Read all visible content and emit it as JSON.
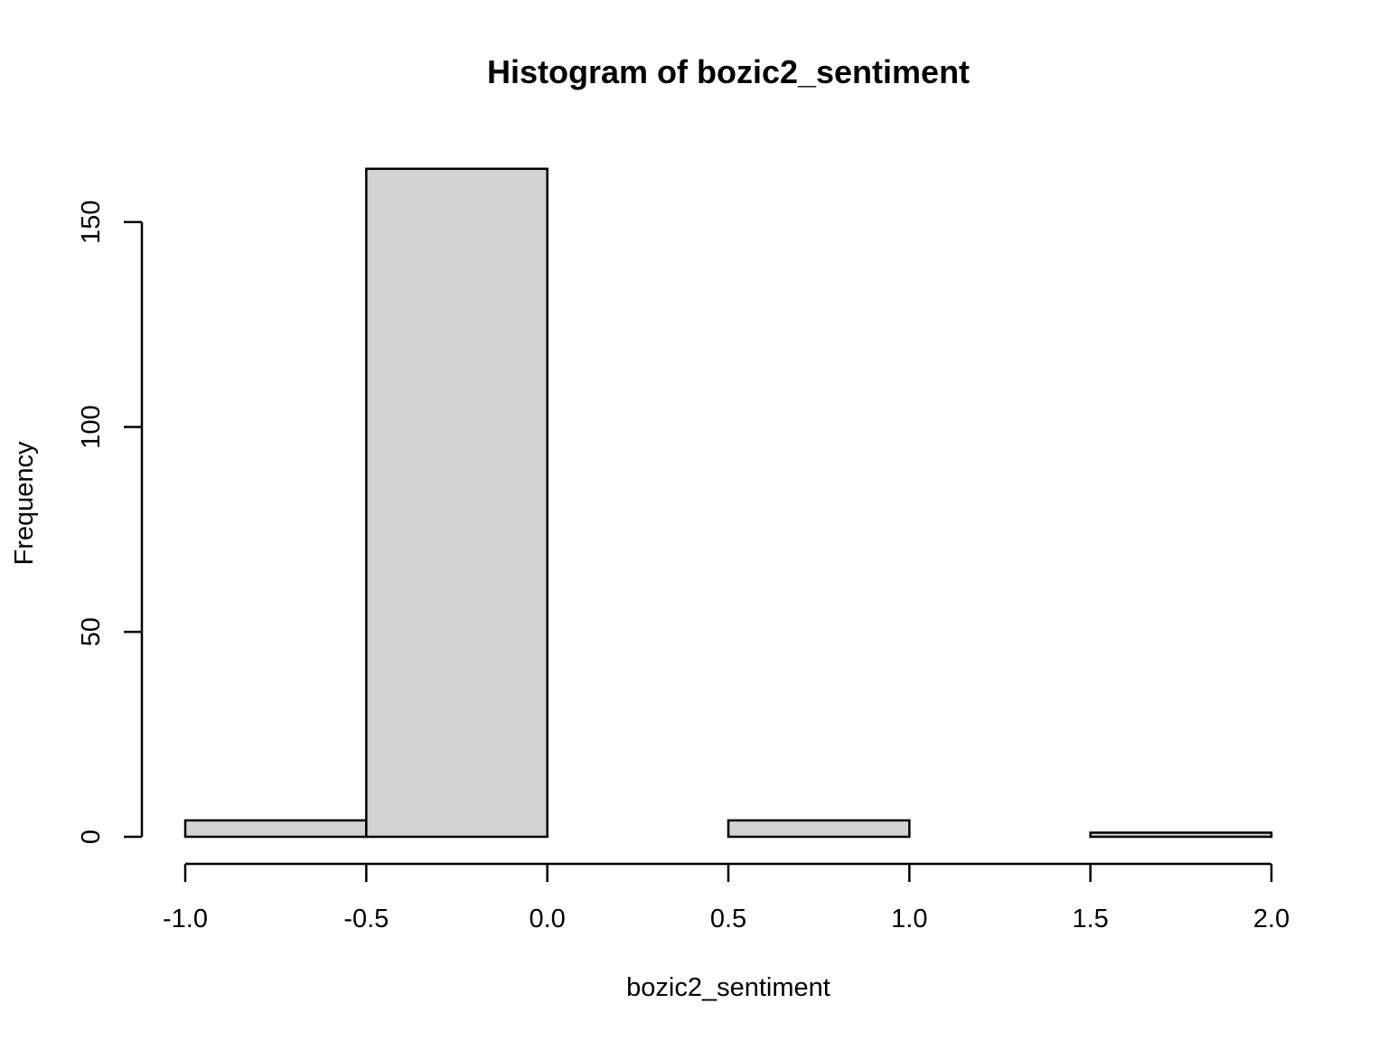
{
  "chart_data": {
    "type": "bar",
    "title": "Histogram of bozic2_sentiment",
    "xlabel": "bozic2_sentiment",
    "ylabel": "Frequency",
    "bins": [
      {
        "from": -1.0,
        "to": -0.5,
        "count": 4
      },
      {
        "from": -0.5,
        "to": 0.0,
        "count": 163
      },
      {
        "from": 0.0,
        "to": 0.5,
        "count": 0
      },
      {
        "from": 0.5,
        "to": 1.0,
        "count": 4
      },
      {
        "from": 1.0,
        "to": 1.5,
        "count": 0
      },
      {
        "from": 1.5,
        "to": 2.0,
        "count": 1
      }
    ],
    "xticks": [
      "-1.0",
      "-0.5",
      "0.0",
      "0.5",
      "1.0",
      "1.5",
      "2.0"
    ],
    "yticks": [
      "0",
      "50",
      "100",
      "150"
    ],
    "xlim": [
      -1.0,
      2.0
    ],
    "ylim": [
      0,
      163
    ],
    "bar_color": "#d3d3d3",
    "grid": false
  }
}
